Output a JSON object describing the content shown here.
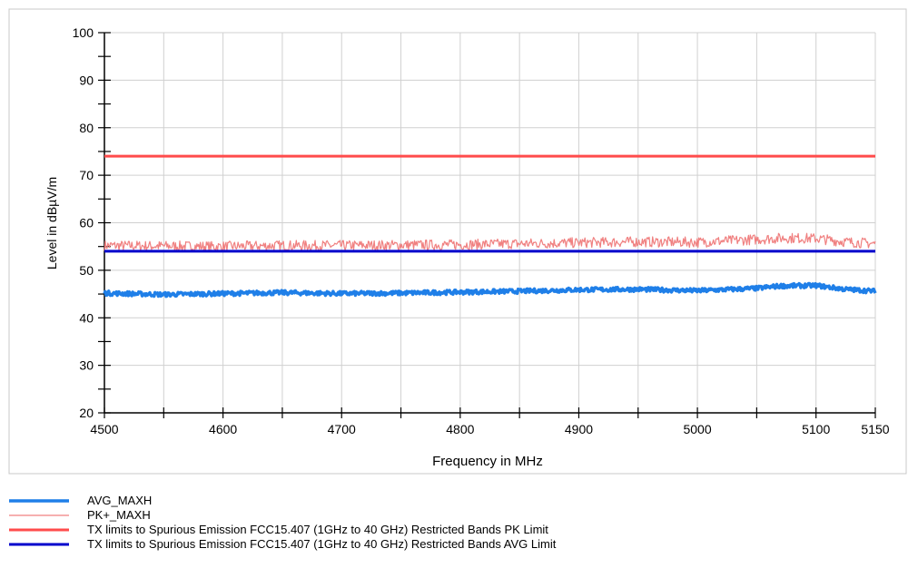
{
  "chart_data": {
    "type": "line",
    "title": "",
    "xlabel": "Frequency in MHz",
    "ylabel": "Level in dBµV/m",
    "xlim": [
      4500,
      5150
    ],
    "ylim": [
      20,
      100
    ],
    "x_ticks": [
      4500,
      4600,
      4700,
      4800,
      4900,
      5000,
      5100,
      5150
    ],
    "y_ticks": [
      20,
      30,
      40,
      50,
      60,
      70,
      80,
      90,
      100
    ],
    "grid": true,
    "legend_position": "bottom",
    "series": [
      {
        "name": "AVG_MAXH",
        "color": "#1f7fe8",
        "width": 3.5,
        "noise": 0.45,
        "x": [
          4500,
          4550,
          4600,
          4650,
          4700,
          4750,
          4800,
          4850,
          4900,
          4950,
          5000,
          5050,
          5070,
          5100,
          5125,
          5150
        ],
        "values": [
          45.2,
          44.9,
          45.1,
          45.3,
          45.1,
          45.2,
          45.4,
          45.6,
          45.9,
          46.0,
          45.7,
          46.2,
          46.7,
          46.8,
          46.0,
          45.6
        ]
      },
      {
        "name": "PK+_MAXH",
        "color": "#f08080",
        "width": 1.2,
        "noise": 1.1,
        "x": [
          4500,
          4550,
          4600,
          4650,
          4700,
          4750,
          4800,
          4850,
          4900,
          4950,
          5000,
          5050,
          5075,
          5100,
          5125,
          5150
        ],
        "values": [
          55.2,
          55.1,
          55.0,
          55.2,
          55.2,
          55.3,
          55.4,
          55.6,
          55.8,
          56.0,
          55.9,
          56.5,
          56.8,
          56.7,
          56.0,
          55.6
        ]
      },
      {
        "name": "TX limits to Spurious Emission FCC15.407 (1GHz to 40 GHz) Restricted Bands PK Limit",
        "color": "#ff4c4c",
        "width": 3,
        "noise": 0,
        "x": [
          4500,
          5150
        ],
        "values": [
          74,
          74
        ]
      },
      {
        "name": "TX limits to Spurious Emission FCC15.407 (1GHz to 40 GHz) Restricted Bands AVG Limit",
        "color": "#0000cc",
        "width": 3,
        "noise": 0,
        "x": [
          4500,
          5150
        ],
        "values": [
          54,
          54
        ]
      }
    ]
  }
}
